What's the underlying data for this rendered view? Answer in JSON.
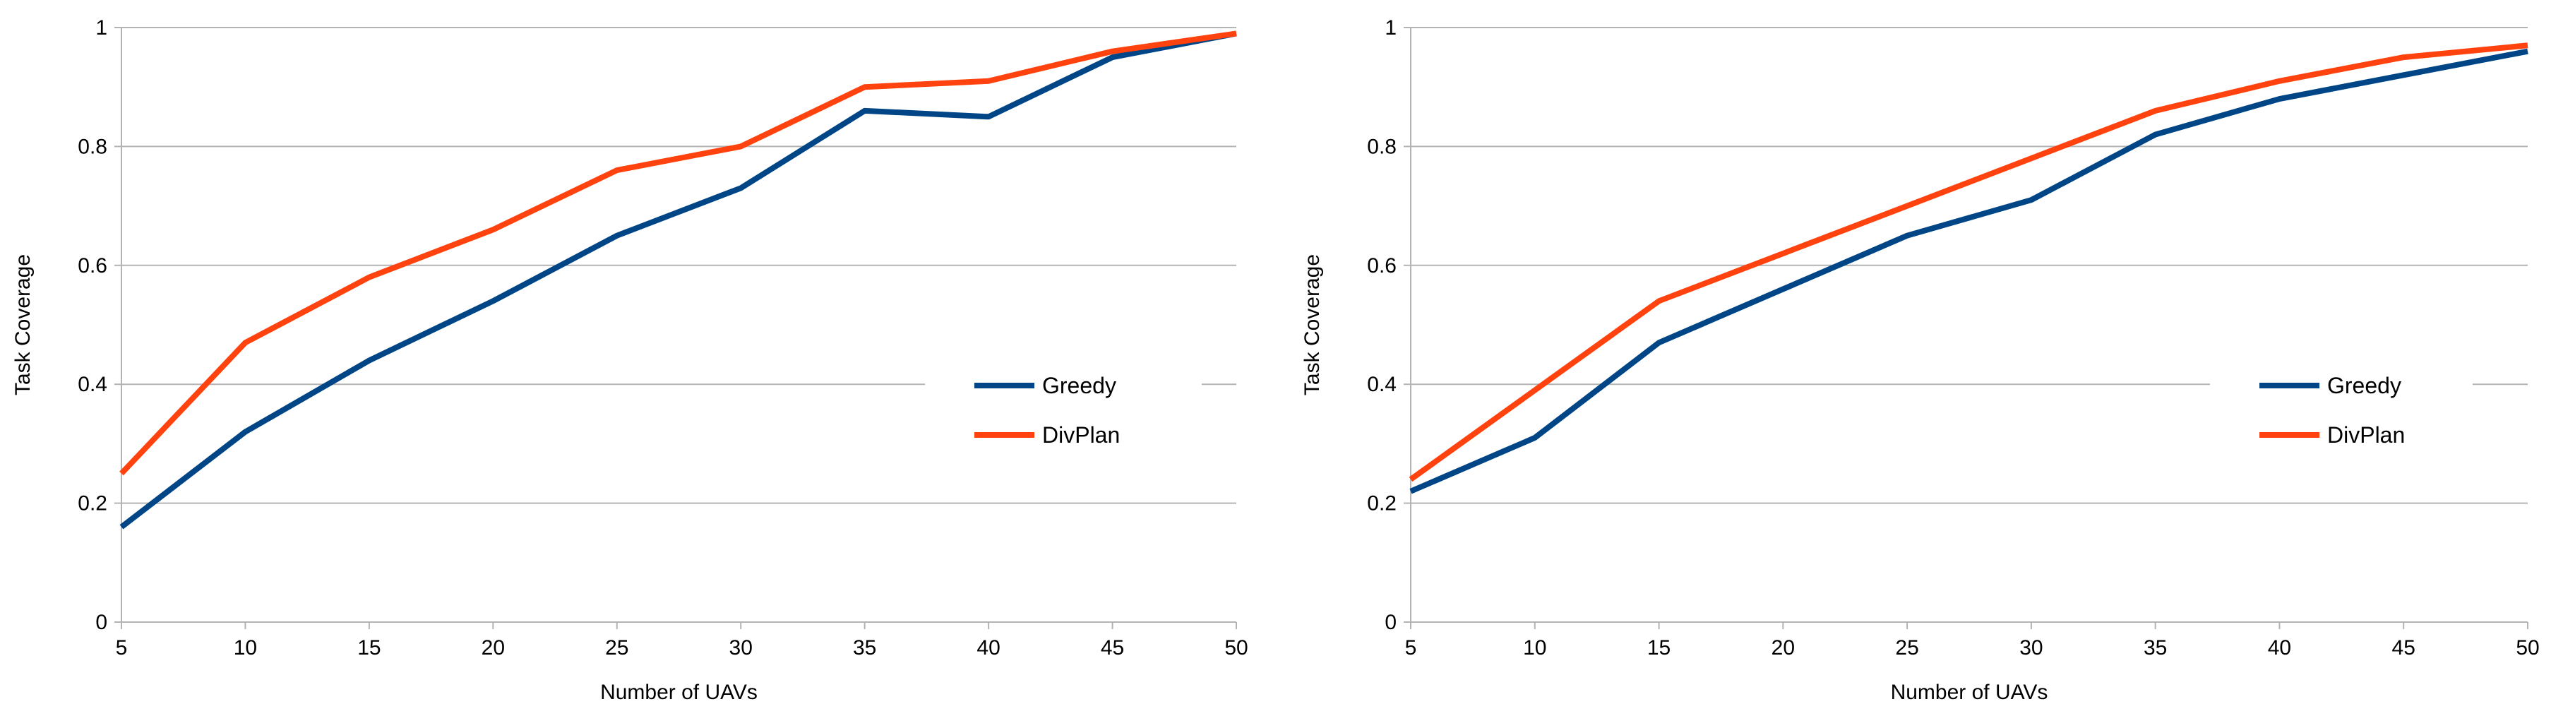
{
  "chart_data": [
    {
      "type": "line",
      "title": "",
      "xlabel": "Number of UAVs",
      "ylabel": "Task Coverage",
      "x": [
        5,
        10,
        15,
        20,
        25,
        30,
        35,
        40,
        45,
        50
      ],
      "x_ticks": [
        "5",
        "10",
        "15",
        "20",
        "25",
        "30",
        "35",
        "40",
        "45",
        "50"
      ],
      "y_ticks": [
        "0",
        "0.2",
        "0.4",
        "0.6",
        "0.8",
        "1"
      ],
      "ylim": [
        0,
        1
      ],
      "grid": "horizontal",
      "legend_position": "right",
      "series": [
        {
          "name": "Greedy",
          "color": "#004586",
          "values": [
            0.16,
            0.32,
            0.44,
            0.54,
            0.65,
            0.73,
            0.86,
            0.85,
            0.95,
            0.99
          ]
        },
        {
          "name": "DivPlan",
          "color": "#ff420e",
          "values": [
            0.25,
            0.47,
            0.58,
            0.66,
            0.76,
            0.8,
            0.9,
            0.91,
            0.96,
            0.99
          ]
        }
      ]
    },
    {
      "type": "line",
      "title": "",
      "xlabel": "Number of UAVs",
      "ylabel": "Task Coverage",
      "x": [
        5,
        10,
        15,
        20,
        25,
        30,
        35,
        40,
        45,
        50
      ],
      "x_ticks": [
        "5",
        "10",
        "15",
        "20",
        "25",
        "30",
        "35",
        "40",
        "45",
        "50"
      ],
      "y_ticks": [
        "0",
        "0.2",
        "0.4",
        "0.6",
        "0.8",
        "1"
      ],
      "ylim": [
        0,
        1
      ],
      "grid": "horizontal",
      "legend_position": "right",
      "series": [
        {
          "name": "Greedy",
          "color": "#004586",
          "values": [
            0.22,
            0.31,
            0.47,
            0.56,
            0.65,
            0.71,
            0.82,
            0.88,
            0.92,
            0.96
          ]
        },
        {
          "name": "DivPlan",
          "color": "#ff420e",
          "values": [
            0.24,
            0.39,
            0.54,
            0.62,
            0.7,
            0.78,
            0.86,
            0.91,
            0.95,
            0.97
          ]
        }
      ]
    }
  ]
}
